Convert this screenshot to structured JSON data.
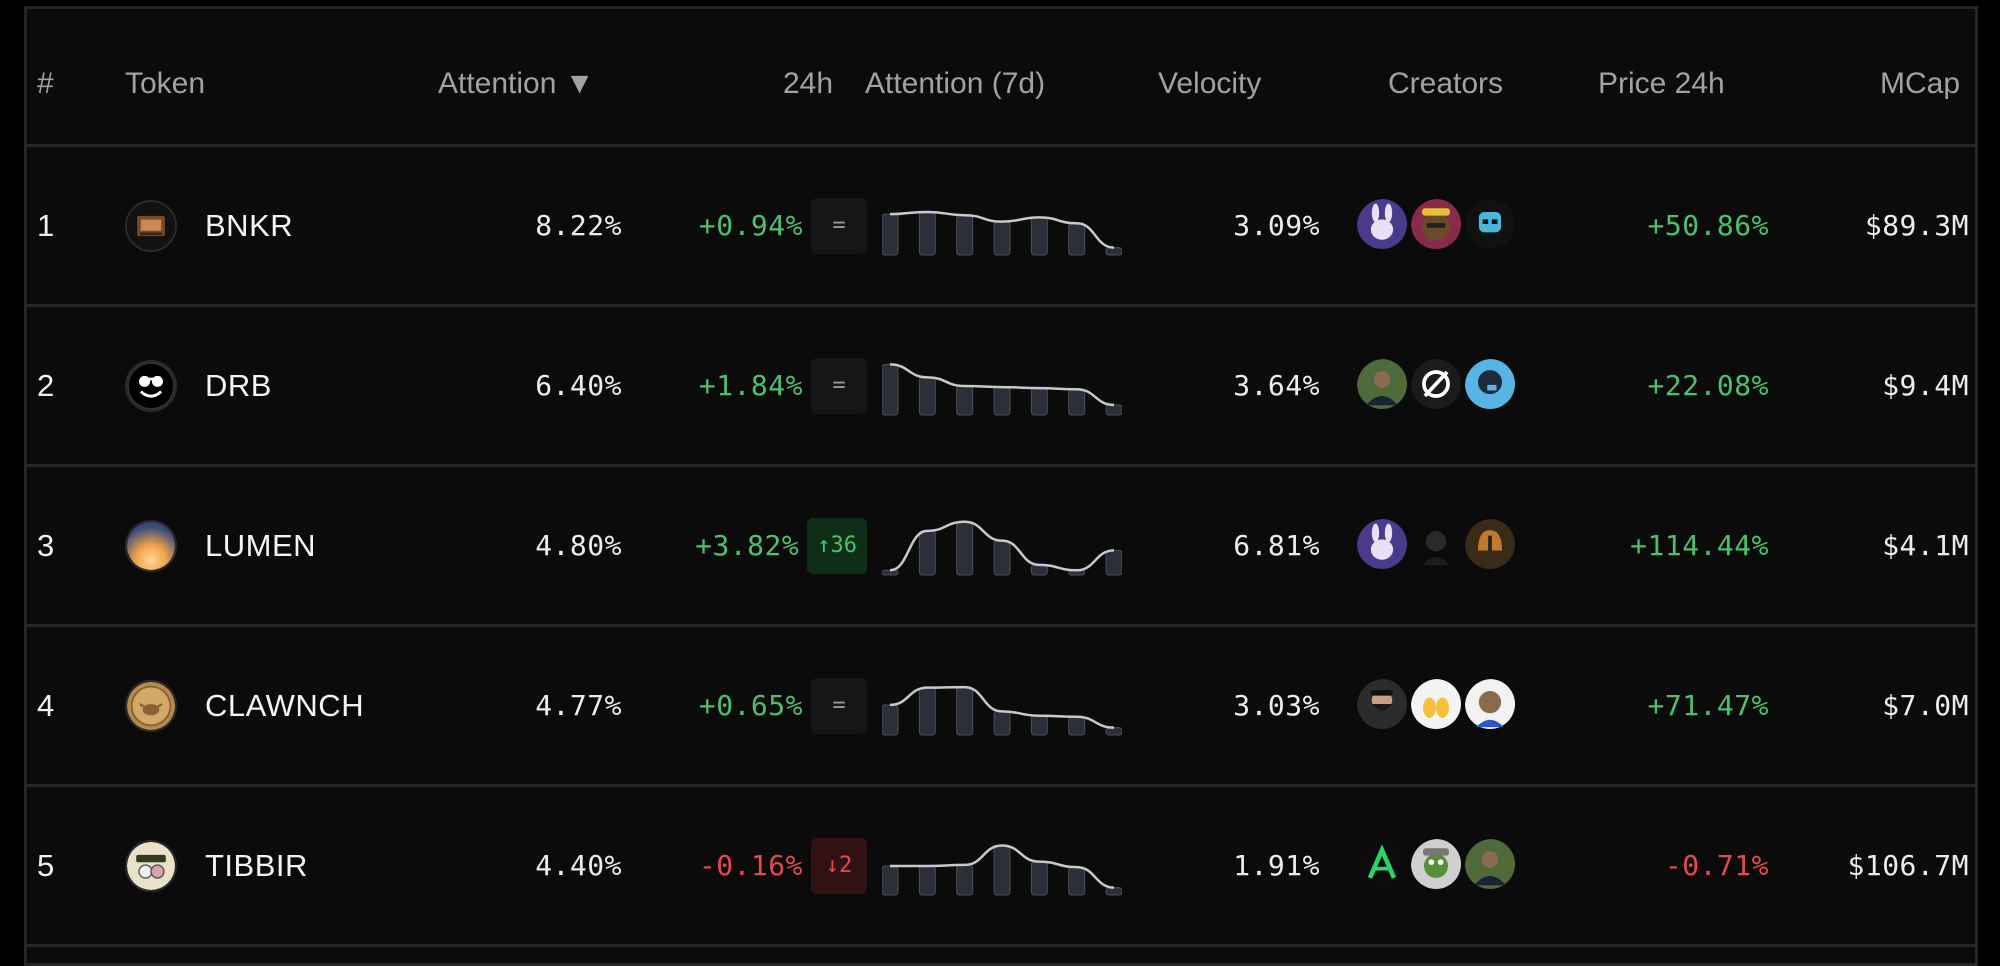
{
  "table": {
    "headers": {
      "rank": "#",
      "token": "Token",
      "attention": "Attention ▼",
      "change_24h": "24h",
      "attention_7d": "Attention (7d)",
      "velocity": "Velocity",
      "creators": "Creators",
      "price_24h": "Price 24h",
      "mcap": "MCap"
    },
    "rows": [
      {
        "rank": "1",
        "token": "BNKR",
        "icon": "bnkr-logo",
        "attention": "8.22%",
        "change_24h": "+0.94%",
        "change_dir": "up",
        "rank_badge": "=",
        "badge_type": "same",
        "attention_7d": [
          0.72,
          0.76,
          0.7,
          0.58,
          0.66,
          0.55,
          0.1
        ],
        "velocity": "3.09%",
        "creators": [
          "purple-bunny-avatar",
          "ape-avatar",
          "skull-avatar"
        ],
        "price_24h": "+50.86%",
        "price_dir": "up",
        "mcap": "$89.3M"
      },
      {
        "rank": "2",
        "token": "DRB",
        "icon": "drb-logo",
        "attention": "6.40%",
        "change_24h": "+1.84%",
        "change_dir": "up",
        "rank_badge": "=",
        "badge_type": "same",
        "attention_7d": [
          0.9,
          0.66,
          0.5,
          0.48,
          0.46,
          0.44,
          0.15
        ],
        "velocity": "3.64%",
        "creators": [
          "person-avatar",
          "slash-logo-avatar",
          "blue-head-avatar"
        ],
        "price_24h": "+22.08%",
        "price_dir": "up",
        "mcap": "$9.4M"
      },
      {
        "rank": "3",
        "token": "LUMEN",
        "icon": "lumen-logo",
        "attention": "4.80%",
        "change_24h": "+3.82%",
        "change_dir": "up",
        "rank_badge": "↑36",
        "badge_type": "up",
        "attention_7d": [
          0.05,
          0.78,
          0.95,
          0.6,
          0.15,
          0.05,
          0.42
        ],
        "velocity": "6.81%",
        "creators": [
          "purple-bunny-avatar",
          "dark-figure-avatar",
          "helmet-avatar"
        ],
        "price_24h": "+114.44%",
        "price_dir": "up",
        "mcap": "$4.1M"
      },
      {
        "rank": "4",
        "token": "CLAWNCH",
        "icon": "clawnch-logo",
        "attention": "4.77%",
        "change_24h": "+0.65%",
        "change_dir": "up",
        "rank_badge": "=",
        "badge_type": "same",
        "attention_7d": [
          0.52,
          0.84,
          0.85,
          0.4,
          0.32,
          0.3,
          0.1
        ],
        "velocity": "3.03%",
        "creators": [
          "bearded-person-avatar",
          "hands-emoji-avatar",
          "cartoon-ape-avatar"
        ],
        "price_24h": "+71.47%",
        "price_dir": "up",
        "mcap": "$7.0M"
      },
      {
        "rank": "5",
        "token": "TIBBIR",
        "icon": "tibbir-logo",
        "attention": "4.40%",
        "change_24h": "-0.16%",
        "change_dir": "down",
        "rank_badge": "↓2",
        "badge_type": "down",
        "attention_7d": [
          0.5,
          0.5,
          0.52,
          0.88,
          0.58,
          0.48,
          0.1
        ],
        "velocity": "1.91%",
        "creators": [
          "green-a-logo-avatar",
          "pepe-avatar",
          "person-avatar"
        ],
        "price_24h": "-0.71%",
        "price_dir": "down",
        "mcap": "$106.7M"
      }
    ]
  },
  "colors": {
    "background": "#0b0b0b",
    "positive": "#4cc16b",
    "negative": "#e5484d",
    "muted": "#a2a2a2",
    "divider": "#262626"
  }
}
